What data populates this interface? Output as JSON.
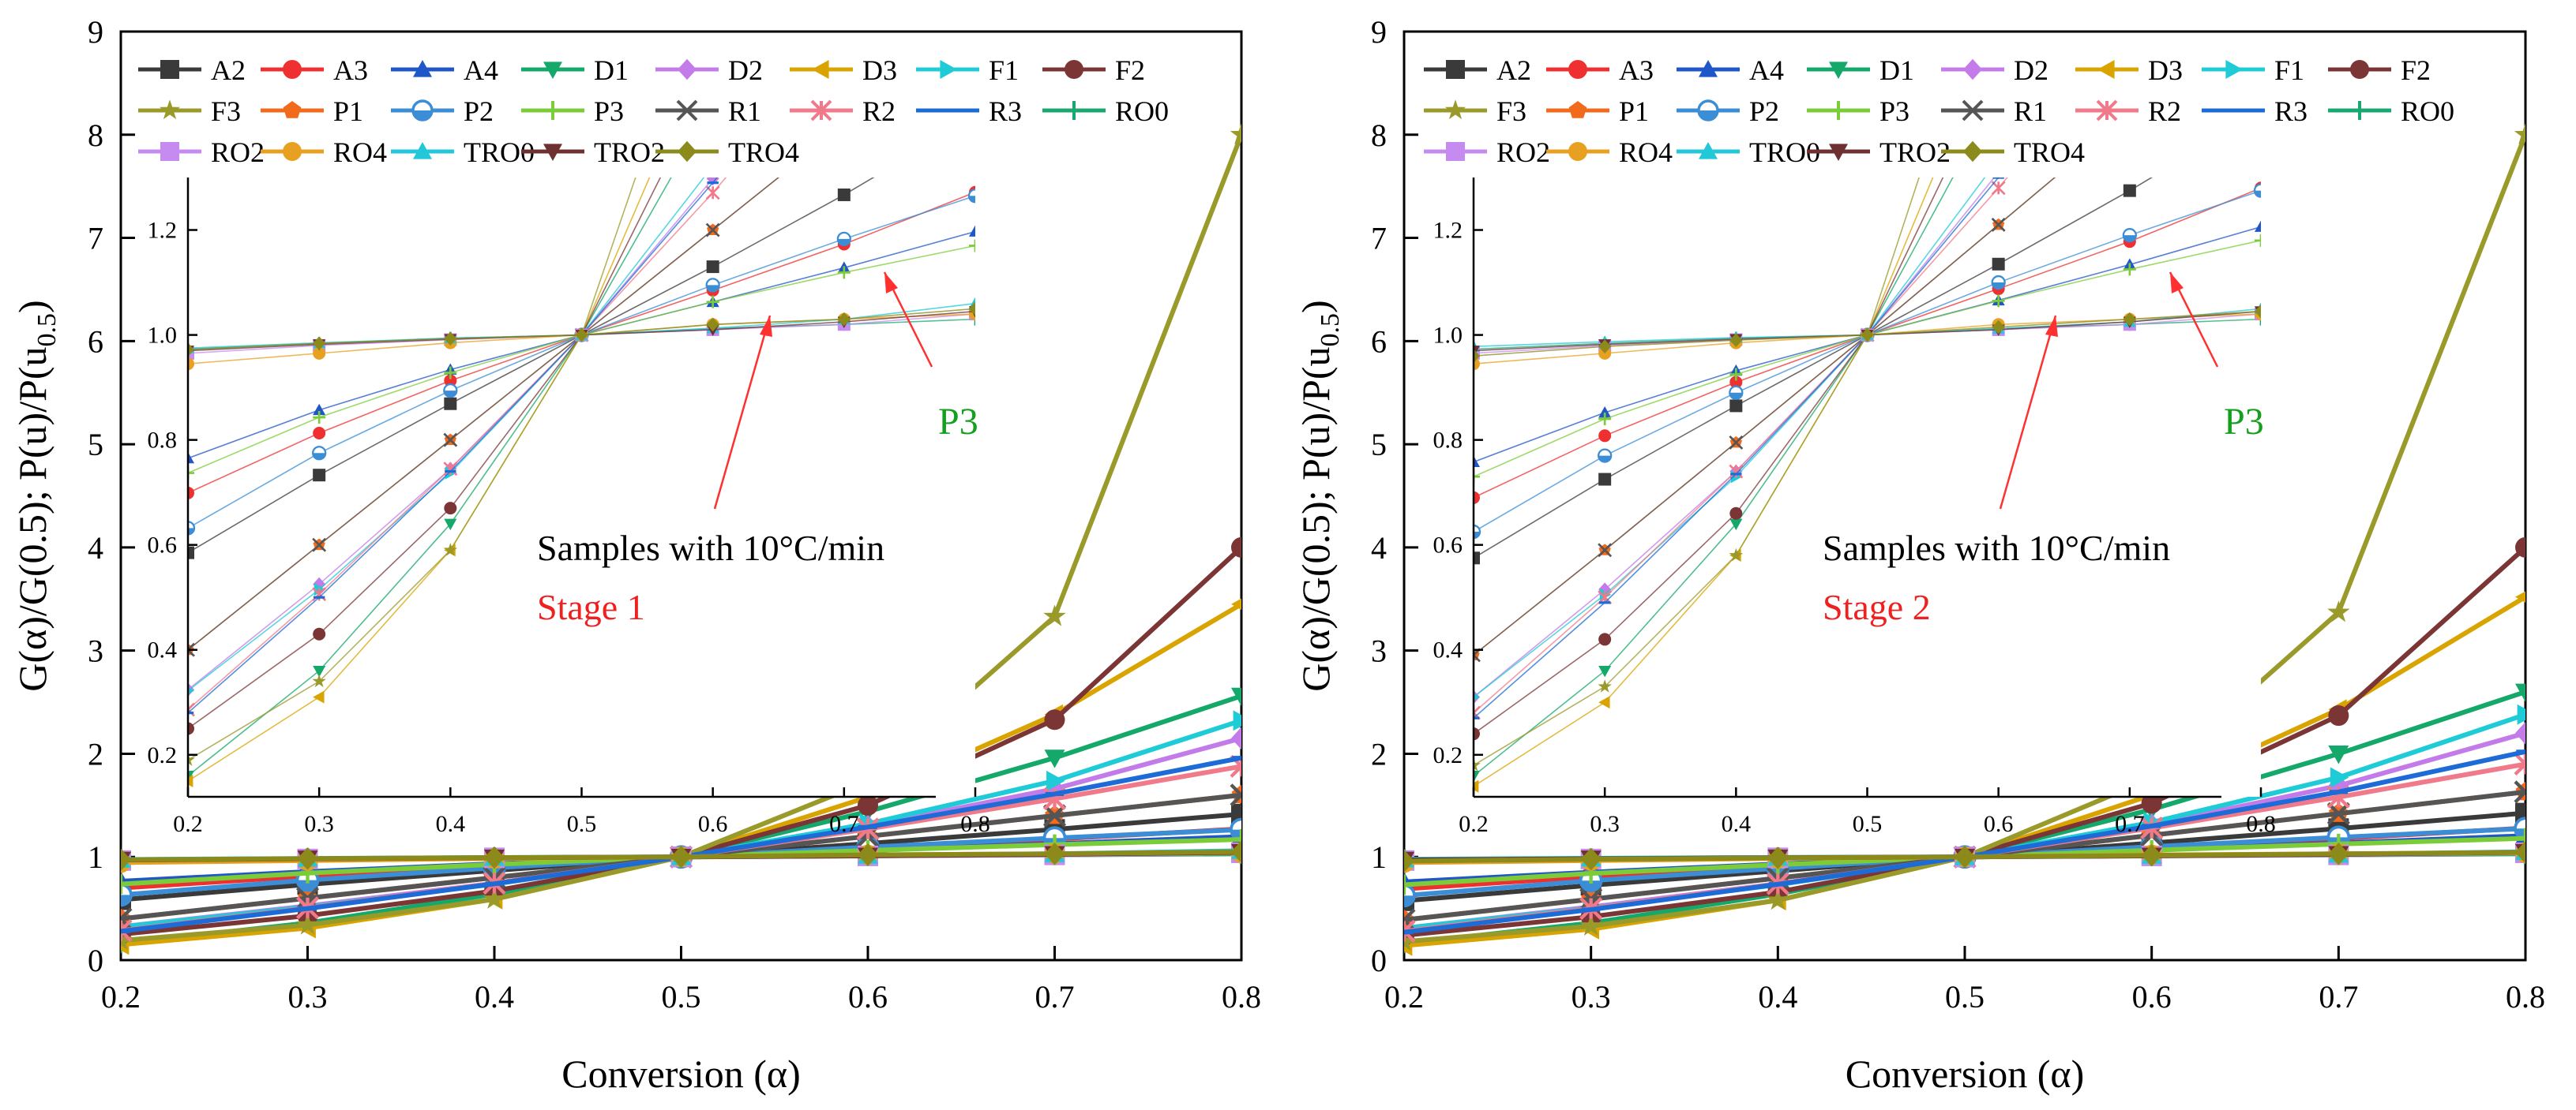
{
  "chart_data": [
    {
      "type": "line",
      "title": "",
      "xlabel": "Conversion (α)",
      "ylabel": "G(α)/G(0.5); P(u)/P(u0.5)",
      "ylabel_main": "G(α)/G(0.5); P(u)/P(u",
      "ylabel_sub": "0.5",
      "ylabel_end": ")",
      "xlim": [
        0.2,
        0.8
      ],
      "ylim": [
        0,
        9
      ],
      "x": [
        0.2,
        0.3,
        0.4,
        0.5,
        0.6,
        0.7,
        0.8
      ],
      "xticks": [
        "0.2",
        "0.3",
        "0.4",
        "0.5",
        "0.6",
        "0.7",
        "0.8"
      ],
      "yticks": [
        "0",
        "1",
        "2",
        "3",
        "4",
        "5",
        "6",
        "7",
        "8",
        "9"
      ],
      "legend_position": "top",
      "annotation_text": "Samples with 10°C/min",
      "stage_label": "Stage 1",
      "arrow_label": "P3",
      "inset": {
        "xlim": [
          0.2,
          0.8
        ],
        "ylim": [
          0.12,
          1.3
        ],
        "xticks": [
          "0.2",
          "0.3",
          "0.4",
          "0.5",
          "0.6",
          "0.7",
          "0.8"
        ],
        "yticks": [
          "0.2",
          "0.4",
          "0.6",
          "0.8",
          "1.0",
          "1.2"
        ]
      },
      "series": [
        {
          "name": "A2",
          "color": "#3a3a3a",
          "marker": "square",
          "values": [
            0.585,
            0.733,
            0.869,
            1.0,
            1.13,
            1.267,
            1.415
          ]
        },
        {
          "name": "A3",
          "color": "#ee3030",
          "marker": "circle",
          "values": [
            0.699,
            0.813,
            0.913,
            1.0,
            1.085,
            1.173,
            1.272
          ]
        },
        {
          "name": "A4",
          "color": "#1f56c8",
          "marker": "triangle-up",
          "values": [
            0.765,
            0.857,
            0.934,
            1.0,
            1.063,
            1.128,
            1.197
          ]
        },
        {
          "name": "D1",
          "color": "#14a86a",
          "marker": "triangle-down",
          "values": [
            0.16,
            0.36,
            0.64,
            1.0,
            1.44,
            1.96,
            2.56
          ]
        },
        {
          "name": "D2",
          "color": "#c27be8",
          "marker": "diamond",
          "values": [
            0.324,
            0.525,
            0.745,
            1.0,
            1.298,
            1.66,
            2.15
          ]
        },
        {
          "name": "D3",
          "color": "#d9a400",
          "marker": "triangle-left",
          "values": [
            0.15,
            0.31,
            0.59,
            1.0,
            1.58,
            2.38,
            3.45
          ]
        },
        {
          "name": "F1",
          "color": "#1ecbd6",
          "marker": "triangle-right",
          "values": [
            0.322,
            0.515,
            0.737,
            1.0,
            1.322,
            1.737,
            2.322
          ]
        },
        {
          "name": "F2",
          "color": "#7b3535",
          "marker": "circle",
          "values": [
            0.25,
            0.43,
            0.67,
            1.0,
            1.5,
            2.33,
            4.0
          ]
        },
        {
          "name": "F3",
          "color": "#9a9a2a",
          "marker": "star",
          "values": [
            0.19,
            0.34,
            0.59,
            1.0,
            1.73,
            3.33,
            8.0
          ]
        },
        {
          "name": "P1",
          "color": "#f26a1b",
          "marker": "pentagon",
          "values": [
            0.4,
            0.6,
            0.8,
            1.0,
            1.2,
            1.4,
            1.6
          ]
        },
        {
          "name": "P2",
          "color": "#3b8dd6",
          "marker": "half-circle",
          "values": [
            0.632,
            0.775,
            0.894,
            1.0,
            1.095,
            1.183,
            1.265
          ]
        },
        {
          "name": "P3",
          "color": "#7ccc3a",
          "marker": "plus",
          "values": [
            0.737,
            0.843,
            0.928,
            1.0,
            1.063,
            1.119,
            1.17
          ]
        },
        {
          "name": "R1",
          "color": "#555555",
          "marker": "x",
          "values": [
            0.4,
            0.6,
            0.8,
            1.0,
            1.2,
            1.4,
            1.6
          ]
        },
        {
          "name": "R2",
          "color": "#f07a8a",
          "marker": "asterisk",
          "values": [
            0.286,
            0.506,
            0.745,
            1.0,
            1.271,
            1.563,
            1.878
          ]
        },
        {
          "name": "R3",
          "color": "#1c6bd6",
          "marker": "dash",
          "values": [
            0.28,
            0.5,
            0.74,
            1.0,
            1.29,
            1.61,
            1.96
          ]
        },
        {
          "name": "RO0",
          "color": "#1ba870",
          "marker": "plus",
          "values": [
            0.973,
            0.984,
            0.994,
            1.0,
            1.012,
            1.02,
            1.03
          ]
        },
        {
          "name": "RO2",
          "color": "#c58bf0",
          "marker": "square",
          "values": [
            0.965,
            0.98,
            0.991,
            1.0,
            1.01,
            1.02,
            1.04
          ]
        },
        {
          "name": "RO4",
          "color": "#e8a020",
          "marker": "circle",
          "values": [
            0.945,
            0.965,
            0.985,
            1.0,
            1.02,
            1.03,
            1.04
          ]
        },
        {
          "name": "TRO0",
          "color": "#22c7d8",
          "marker": "triangle-up",
          "values": [
            0.975,
            0.985,
            0.994,
            1.0,
            1.013,
            1.03,
            1.06
          ]
        },
        {
          "name": "TRO2",
          "color": "#6e3030",
          "marker": "triangle-down",
          "values": [
            0.97,
            0.982,
            0.992,
            1.0,
            1.01,
            1.025,
            1.045
          ]
        },
        {
          "name": "TRO4",
          "color": "#8b8a1a",
          "marker": "diamond",
          "values": [
            0.972,
            0.984,
            0.993,
            1.0,
            1.02,
            1.03,
            1.05
          ]
        }
      ]
    },
    {
      "type": "line",
      "title": "",
      "xlabel": "Conversion (α)",
      "ylabel": "G(α)/G(0.5); P(u)/P(u0.5)",
      "ylabel_main": "G(α)/G(0.5); P(u)/P(u",
      "ylabel_sub": "0.5",
      "ylabel_end": ")",
      "xlim": [
        0.2,
        0.8
      ],
      "ylim": [
        0,
        9
      ],
      "x": [
        0.2,
        0.3,
        0.4,
        0.5,
        0.6,
        0.7,
        0.8
      ],
      "xticks": [
        "0.2",
        "0.3",
        "0.4",
        "0.5",
        "0.6",
        "0.7",
        "0.8"
      ],
      "yticks": [
        "0",
        "1",
        "2",
        "3",
        "4",
        "5",
        "6",
        "7",
        "8",
        "9"
      ],
      "legend_position": "top",
      "annotation_text": "Samples with 10°C/min",
      "stage_label": "Stage 2",
      "arrow_label": "P3",
      "inset": {
        "xlim": [
          0.2,
          0.8
        ],
        "ylim": [
          0.12,
          1.3
        ],
        "xticks": [
          "0.2",
          "0.3",
          "0.4",
          "0.5",
          "0.6",
          "0.7",
          "0.8"
        ],
        "yticks": [
          "0.2",
          "0.4",
          "0.6",
          "0.8",
          "1.0",
          "1.2"
        ]
      },
      "series": [
        {
          "name": "A2",
          "color": "#3a3a3a",
          "marker": "square",
          "values": [
            0.575,
            0.725,
            0.865,
            1.0,
            1.135,
            1.275,
            1.425
          ]
        },
        {
          "name": "A3",
          "color": "#ee3030",
          "marker": "circle",
          "values": [
            0.69,
            0.808,
            0.91,
            1.0,
            1.088,
            1.178,
            1.28
          ]
        },
        {
          "name": "A4",
          "color": "#1f56c8",
          "marker": "triangle-up",
          "values": [
            0.758,
            0.852,
            0.932,
            1.0,
            1.066,
            1.134,
            1.206
          ]
        },
        {
          "name": "D1",
          "color": "#14a86a",
          "marker": "triangle-down",
          "values": [
            0.16,
            0.36,
            0.64,
            1.0,
            1.46,
            2.0,
            2.6
          ]
        },
        {
          "name": "D2",
          "color": "#c27be8",
          "marker": "diamond",
          "values": [
            0.31,
            0.515,
            0.74,
            1.0,
            1.31,
            1.69,
            2.2
          ]
        },
        {
          "name": "D3",
          "color": "#d9a400",
          "marker": "triangle-left",
          "values": [
            0.14,
            0.3,
            0.58,
            1.0,
            1.6,
            2.43,
            3.52
          ]
        },
        {
          "name": "F1",
          "color": "#1ecbd6",
          "marker": "triangle-right",
          "values": [
            0.31,
            0.505,
            0.73,
            1.0,
            1.335,
            1.77,
            2.38
          ]
        },
        {
          "name": "F2",
          "color": "#7b3535",
          "marker": "circle",
          "values": [
            0.24,
            0.42,
            0.66,
            1.0,
            1.52,
            2.37,
            4.0
          ]
        },
        {
          "name": "F3",
          "color": "#9a9a2a",
          "marker": "star",
          "values": [
            0.18,
            0.33,
            0.58,
            1.0,
            1.76,
            3.37,
            8.0
          ]
        },
        {
          "name": "P1",
          "color": "#f26a1b",
          "marker": "pentagon",
          "values": [
            0.39,
            0.59,
            0.795,
            1.0,
            1.21,
            1.42,
            1.63
          ]
        },
        {
          "name": "P2",
          "color": "#3b8dd6",
          "marker": "half-circle",
          "values": [
            0.625,
            0.77,
            0.89,
            1.0,
            1.1,
            1.19,
            1.275
          ]
        },
        {
          "name": "P3",
          "color": "#7ccc3a",
          "marker": "plus",
          "values": [
            0.73,
            0.84,
            0.925,
            1.0,
            1.065,
            1.125,
            1.18
          ]
        },
        {
          "name": "R1",
          "color": "#555555",
          "marker": "x",
          "values": [
            0.39,
            0.59,
            0.795,
            1.0,
            1.21,
            1.42,
            1.63
          ]
        },
        {
          "name": "R2",
          "color": "#f07a8a",
          "marker": "asterisk",
          "values": [
            0.28,
            0.5,
            0.74,
            1.0,
            1.28,
            1.58,
            1.9
          ]
        },
        {
          "name": "R3",
          "color": "#1c6bd6",
          "marker": "dash",
          "values": [
            0.27,
            0.49,
            0.735,
            1.0,
            1.3,
            1.63,
            2.02
          ]
        },
        {
          "name": "RO0",
          "color": "#1ba870",
          "marker": "plus",
          "values": [
            0.973,
            0.984,
            0.994,
            1.0,
            1.012,
            1.02,
            1.03
          ]
        },
        {
          "name": "RO2",
          "color": "#c58bf0",
          "marker": "square",
          "values": [
            0.965,
            0.98,
            0.991,
            1.0,
            1.01,
            1.02,
            1.04
          ]
        },
        {
          "name": "RO4",
          "color": "#e8a020",
          "marker": "circle",
          "values": [
            0.945,
            0.965,
            0.985,
            1.0,
            1.02,
            1.03,
            1.04
          ]
        },
        {
          "name": "TRO0",
          "color": "#22c7d8",
          "marker": "triangle-up",
          "values": [
            0.978,
            0.987,
            0.995,
            1.0,
            1.012,
            1.025,
            1.05
          ]
        },
        {
          "name": "TRO2",
          "color": "#6e3030",
          "marker": "triangle-down",
          "values": [
            0.97,
            0.982,
            0.992,
            1.0,
            1.01,
            1.025,
            1.045
          ]
        },
        {
          "name": "TRO4",
          "color": "#8b8a1a",
          "marker": "diamond",
          "values": [
            0.96,
            0.978,
            0.99,
            1.0,
            1.015,
            1.03,
            1.045
          ]
        }
      ]
    }
  ]
}
